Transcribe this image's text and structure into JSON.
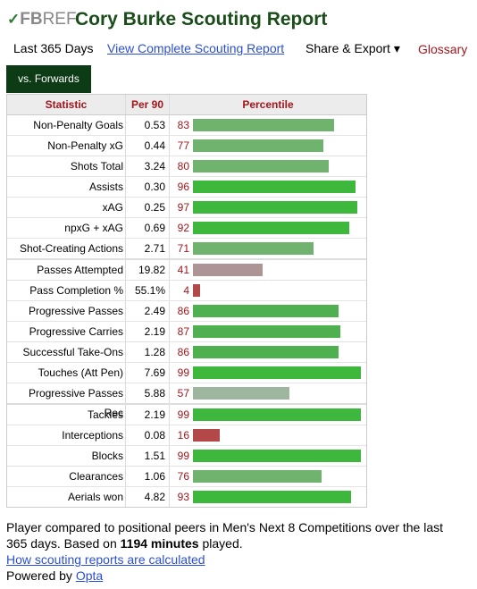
{
  "header": {
    "logo": {
      "fb": "FB",
      "ref": "REF"
    },
    "title": "Cory Burke Scouting Report"
  },
  "nav": {
    "period": "Last 365 Days",
    "complete": "View Complete Scouting Report",
    "share": "Share & Export ▾",
    "glossary": "Glossary"
  },
  "tab": "vs. Forwards",
  "table": {
    "columns": [
      "Statistic",
      "Per 90",
      "Percentile"
    ],
    "groups": [
      [
        {
          "stat": "Non-Penalty Goals",
          "per90": "0.53",
          "percentile": 83,
          "color": "#6fb36f"
        },
        {
          "stat": "Non-Penalty xG",
          "per90": "0.44",
          "percentile": 77,
          "color": "#6fb36f"
        },
        {
          "stat": "Shots Total",
          "per90": "3.24",
          "percentile": 80,
          "color": "#6fb36f"
        },
        {
          "stat": "Assists",
          "per90": "0.30",
          "percentile": 96,
          "color": "#3db83d"
        },
        {
          "stat": "xAG",
          "per90": "0.25",
          "percentile": 97,
          "color": "#3db83d"
        },
        {
          "stat": "npxG + xAG",
          "per90": "0.69",
          "percentile": 92,
          "color": "#3db83d"
        },
        {
          "stat": "Shot-Creating Actions",
          "per90": "2.71",
          "percentile": 71,
          "color": "#6fb36f"
        }
      ],
      [
        {
          "stat": "Passes Attempted",
          "per90": "19.82",
          "percentile": 41,
          "color": "#ad9595"
        },
        {
          "stat": "Pass Completion %",
          "per90": "55.1%",
          "percentile": 4,
          "color": "#b24848"
        },
        {
          "stat": "Progressive Passes",
          "per90": "2.49",
          "percentile": 86,
          "color": "#4fb04f"
        },
        {
          "stat": "Progressive Carries",
          "per90": "2.19",
          "percentile": 87,
          "color": "#4fb04f"
        },
        {
          "stat": "Successful Take-Ons",
          "per90": "1.28",
          "percentile": 86,
          "color": "#4fb04f"
        },
        {
          "stat": "Touches (Att Pen)",
          "per90": "7.69",
          "percentile": 99,
          "color": "#3db83d"
        },
        {
          "stat": "Progressive Passes Rec",
          "per90": "5.88",
          "percentile": 57,
          "color": "#9eb59e"
        }
      ],
      [
        {
          "stat": "Tackles",
          "per90": "2.19",
          "percentile": 99,
          "color": "#3db83d"
        },
        {
          "stat": "Interceptions",
          "per90": "0.08",
          "percentile": 16,
          "color": "#b24848"
        },
        {
          "stat": "Blocks",
          "per90": "1.51",
          "percentile": 99,
          "color": "#3db83d"
        },
        {
          "stat": "Clearances",
          "per90": "1.06",
          "percentile": 76,
          "color": "#6fb36f"
        },
        {
          "stat": "Aerials won",
          "per90": "4.82",
          "percentile": 93,
          "color": "#3db83d"
        }
      ]
    ]
  },
  "footer": {
    "text1": "Player compared to positional peers in Men's Next 8 Competitions over the last 365 days. Based on ",
    "minutes": "1194 minutes",
    "text2": " played.",
    "howto": "How scouting reports are calculated",
    "powered": "Powered by ",
    "opta": "Opta"
  }
}
